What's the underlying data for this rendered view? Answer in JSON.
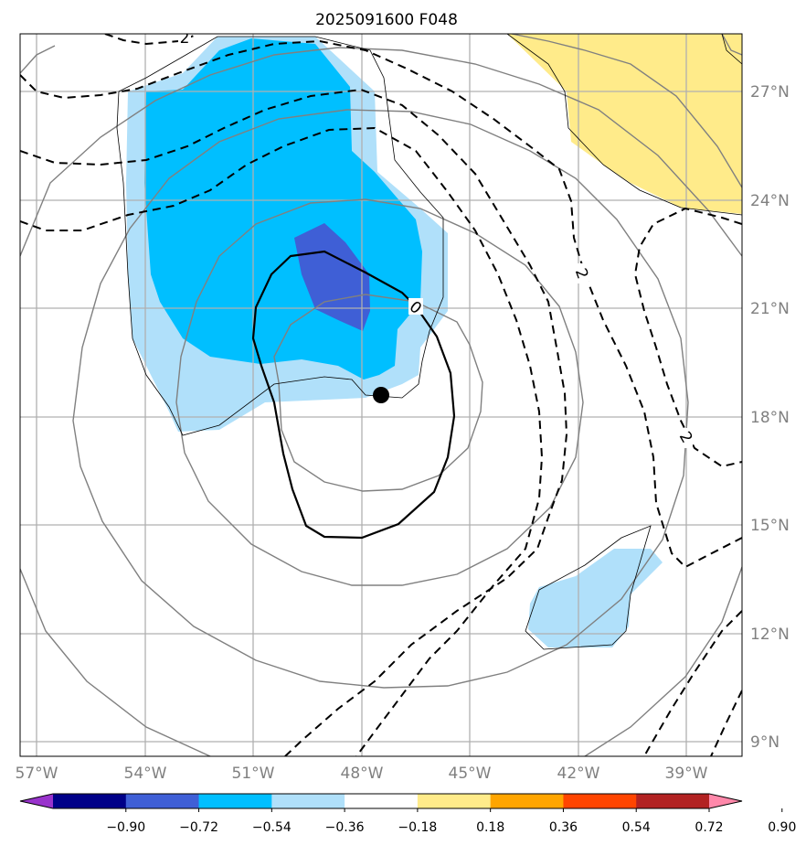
{
  "title": "2025091600 F048",
  "map": {
    "lon_labels": [
      "57°W",
      "54°W",
      "51°W",
      "48°W",
      "45°W",
      "42°W",
      "39°W"
    ],
    "lat_labels": [
      "27°N",
      "24°N",
      "21°N",
      "18°N",
      "15°N",
      "12°N",
      "9°N"
    ],
    "contour_labels": [
      "2",
      "2",
      "2",
      "0"
    ],
    "storm_center_marker": "filled-black-dot"
  },
  "colorbar": {
    "ticks": [
      "−0.90",
      "−0.72",
      "−0.54",
      "−0.36",
      "−0.18",
      "0.18",
      "0.36",
      "0.54",
      "0.72",
      "0.90"
    ],
    "colors": [
      "#9933cc",
      "#000088",
      "#3f5fd6",
      "#00bfff",
      "#b0e0fa",
      "#ffffff",
      "#ffeb8a",
      "#ffa500",
      "#ff4500",
      "#b22222",
      "#ff88aa"
    ]
  },
  "colors": {
    "shade_light_blue": "#b0e0fa",
    "shade_sky_blue": "#00bfff",
    "shade_royal_blue": "#3f5fd6",
    "shade_yellow": "#ffeb8a",
    "gridline": "#b0b0b0",
    "gray_contour": "#808080"
  }
}
